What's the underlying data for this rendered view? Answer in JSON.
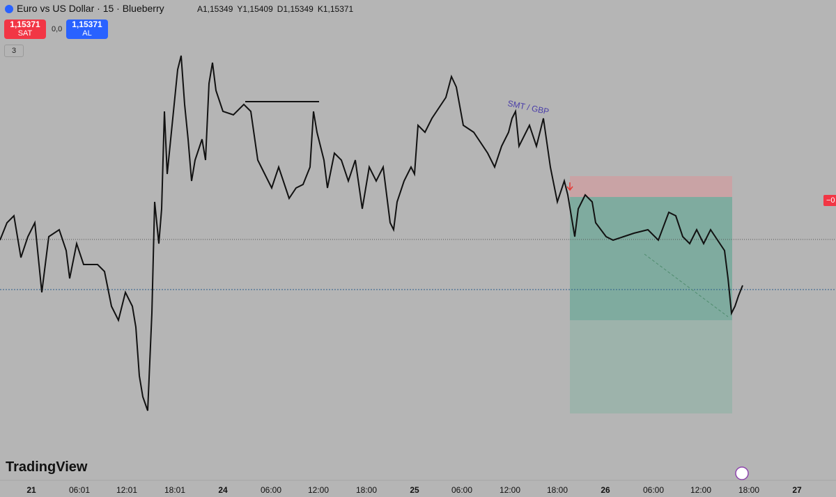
{
  "header": {
    "title": "Euro vs US Dollar · 15 · Blueberry",
    "ohlc": [
      "A1,15349",
      "Y1,15409",
      "D1,15349",
      "K1,15371"
    ]
  },
  "order_buttons": {
    "sell": {
      "price": "1,15371",
      "label": "SAT"
    },
    "spread": "0,0",
    "buy": {
      "price": "1,15371",
      "label": "AL"
    }
  },
  "indicators_toggle": "3",
  "annotation": "SMT / GBP",
  "watermark": "TradingView",
  "side_label": "−0",
  "x_axis": [
    "21",
    "06:01",
    "12:01",
    "18:01",
    "24",
    "06:00",
    "12:00",
    "18:00",
    "25",
    "06:00",
    "12:00",
    "18:00",
    "26",
    "06:00",
    "12:00",
    "18:00",
    "27"
  ]
}
